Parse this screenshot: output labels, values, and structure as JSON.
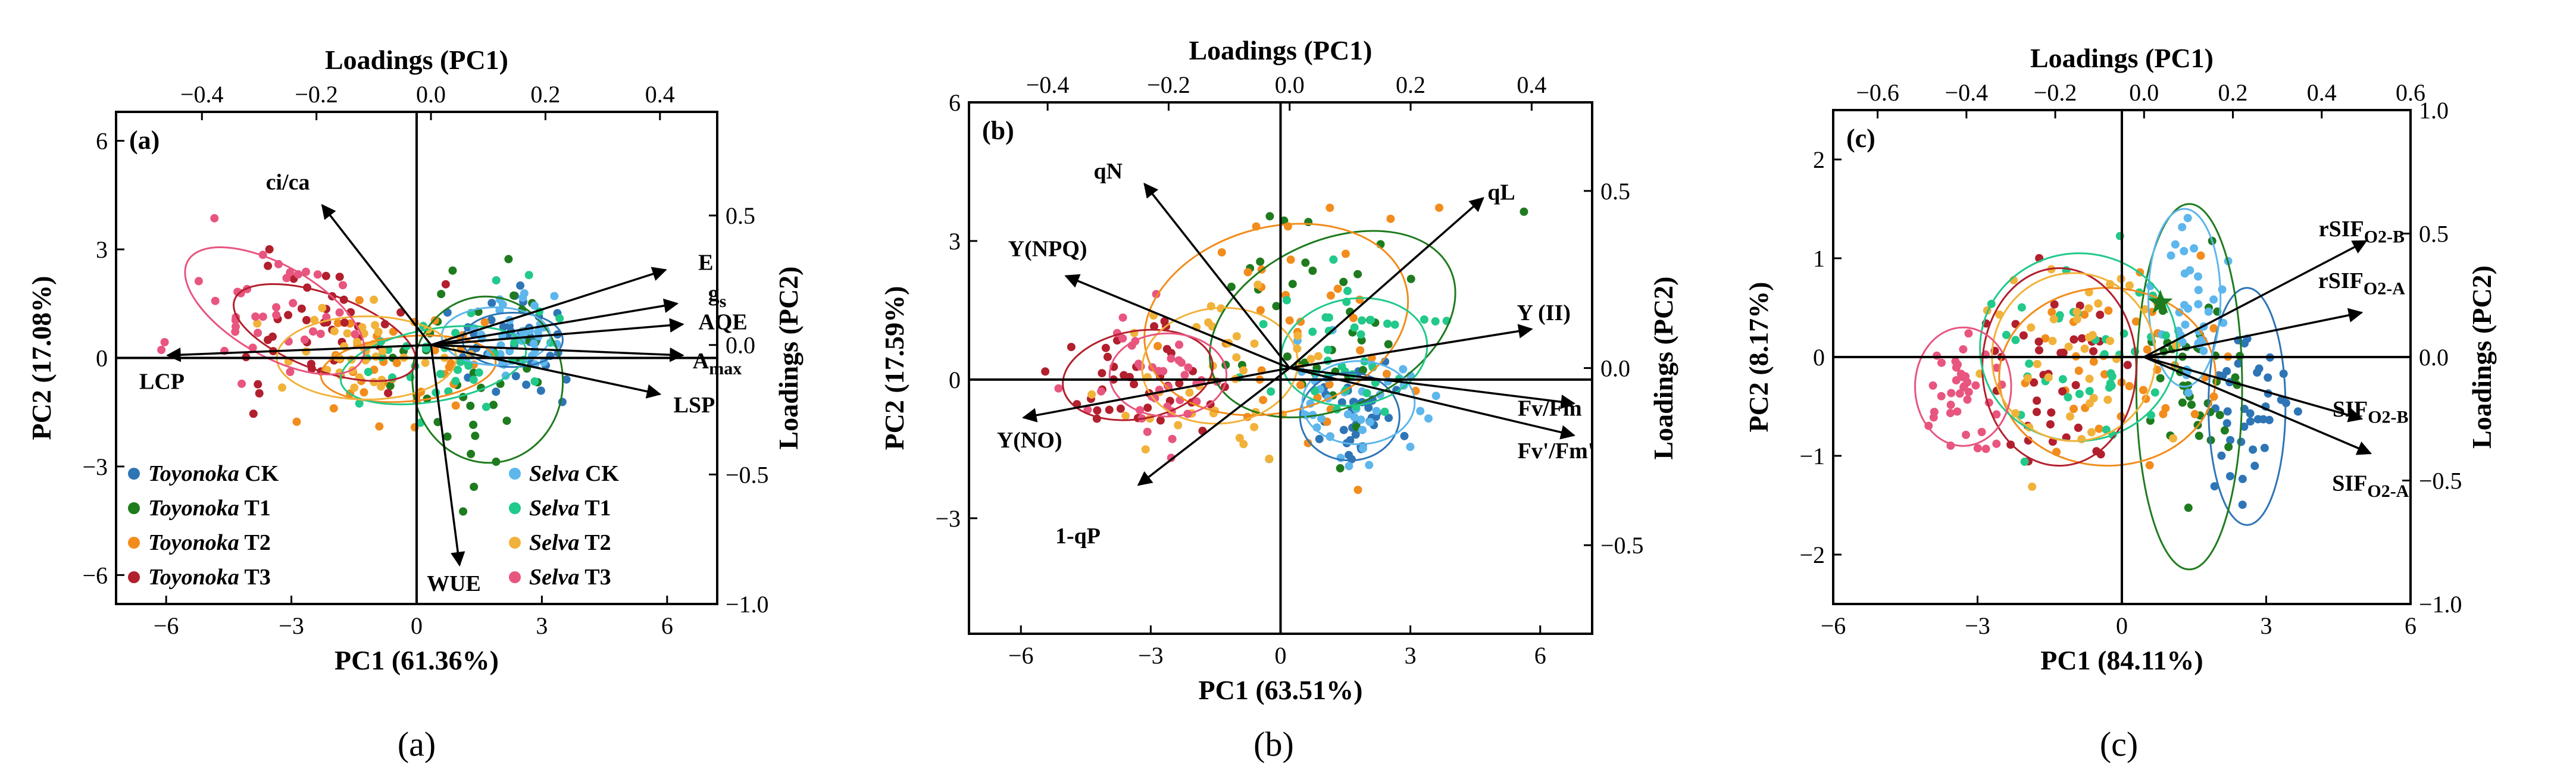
{
  "chart_data": [
    {
      "type": "scatter",
      "panel": "(a)",
      "caption": "(a)",
      "top_title": "Loadings (PC1)",
      "right_title": "Loadings (PC2)",
      "xlabel": "PC1 (61.36%)",
      "ylabel": "PC2 (17.08%)",
      "xlim": [
        -7.2,
        7.2
      ],
      "ylim": [
        -6.8,
        6.8
      ],
      "xticks": [
        -6,
        -3,
        0,
        3,
        6
      ],
      "xtick_labels": [
        "−6",
        "−3",
        "0",
        "3",
        "6"
      ],
      "yticks": [
        -6,
        -3,
        0,
        3,
        6
      ],
      "ytick_labels": [
        "−6",
        "−3",
        "0",
        "3",
        "6"
      ],
      "top_lim": [
        -0.55,
        0.5
      ],
      "top_ticks": [
        -0.4,
        -0.2,
        0.0,
        0.2,
        0.4
      ],
      "top_tick_labels": [
        "−0.4",
        "−0.2",
        "0.0",
        "0.2",
        "0.4"
      ],
      "right_lim": [
        -1.0,
        0.9
      ],
      "right_ticks": [
        0.5,
        0.0,
        -0.5,
        -1.0
      ],
      "right_tick_labels": [
        "0.5",
        "0.0",
        "−0.5",
        "−1.0"
      ],
      "legend": [
        {
          "cultivar": "Toyonoka",
          "treatment": "CK",
          "color": "#2e75b6"
        },
        {
          "cultivar": "Toyonoka",
          "treatment": "T1",
          "color": "#1e7b1e"
        },
        {
          "cultivar": "Toyonoka",
          "treatment": "T2",
          "color": "#f28c1c"
        },
        {
          "cultivar": "Toyonoka",
          "treatment": "T3",
          "color": "#b21f2d"
        },
        {
          "cultivar": "Selva",
          "treatment": "CK",
          "color": "#5db6ec"
        },
        {
          "cultivar": "Selva",
          "treatment": "T1",
          "color": "#21c98a"
        },
        {
          "cultivar": "Selva",
          "treatment": "T2",
          "color": "#f1b23a"
        },
        {
          "cultivar": "Selva",
          "treatment": "T3",
          "color": "#e8557f"
        }
      ],
      "groups": [
        {
          "center": [
            2.4,
            0.5
          ],
          "spread": [
            0.9,
            0.9
          ],
          "ellipse": [
            2.3,
            2.4,
            1.5,
            0,
            0
          ]
        },
        {
          "center": [
            1.6,
            -0.6
          ],
          "spread": [
            1.2,
            2.2
          ],
          "ellipse": [
            1.7,
            3.6,
            4.6,
            6,
            0
          ]
        },
        {
          "center": [
            -0.6,
            -0.3
          ],
          "spread": [
            1.3,
            1.0
          ],
          "ellipse": [
            -0.2,
            4.2,
            1.8,
            5,
            0
          ]
        },
        {
          "center": [
            -2.3,
            0.7
          ],
          "spread": [
            1.3,
            1.0
          ],
          "ellipse": [
            -2.2,
            4.6,
            2.1,
            -20,
            0
          ]
        },
        {
          "center": [
            2.5,
            0.6
          ],
          "spread": [
            0.7,
            0.7
          ],
          "ellipse": [
            1.9,
            2.6,
            1.6,
            0,
            0
          ]
        },
        {
          "center": [
            0.8,
            -0.2
          ],
          "spread": [
            1.5,
            1.0
          ],
          "ellipse": [
            0.4,
            4.5,
            2.0,
            10,
            0
          ]
        },
        {
          "center": [
            -1.4,
            0.0
          ],
          "spread": [
            1.5,
            1.1
          ],
          "ellipse": [
            -1.2,
            4.3,
            2.3,
            0,
            0
          ]
        },
        {
          "center": [
            -3.6,
            1.3
          ],
          "spread": [
            1.6,
            1.1
          ],
          "ellipse": [
            -3.4,
            4.8,
            2.5,
            -30,
            0
          ]
        }
      ],
      "vectors": [
        {
          "label": "ci/ca",
          "x": -0.19,
          "y": 0.54,
          "lx": -0.25,
          "ly": 0.62
        },
        {
          "label": "E",
          "x": 0.41,
          "y": 0.29,
          "lx": 0.48,
          "ly": 0.31
        },
        {
          "label": "g",
          "sub": "s",
          "x": 0.43,
          "y": 0.16,
          "lx": 0.5,
          "ly": 0.19
        },
        {
          "label": "AQE",
          "x": 0.44,
          "y": 0.08,
          "lx": 0.51,
          "ly": 0.08
        },
        {
          "label": "A",
          "sub": "max",
          "x": 0.44,
          "y": -0.04,
          "lx": 0.5,
          "ly": -0.07
        },
        {
          "label": "LSP",
          "x": 0.4,
          "y": -0.19,
          "lx": 0.46,
          "ly": -0.24
        },
        {
          "label": "LCP",
          "x": -0.46,
          "y": -0.04,
          "lx": -0.47,
          "ly": -0.15
        },
        {
          "label": "WUE",
          "x": 0.05,
          "y": -0.85,
          "lx": 0.04,
          "ly": -0.93
        }
      ]
    },
    {
      "type": "scatter",
      "panel": "(b)",
      "caption": "(b)",
      "top_title": "Loadings (PC1)",
      "right_title": "Loadings (PC2)",
      "xlabel": "PC1 (63.51%)",
      "ylabel": "PC2 (17.59%)",
      "xlim": [
        -7.2,
        7.2
      ],
      "ylim": [
        -5.5,
        6.0
      ],
      "xticks": [
        -6,
        -3,
        0,
        3,
        6
      ],
      "xtick_labels": [
        "−6",
        "−3",
        "0",
        "3",
        "6"
      ],
      "yticks": [
        -3,
        0,
        3,
        6
      ],
      "ytick_labels": [
        "−3",
        "0",
        "3",
        "6"
      ],
      "top_lim": [
        -0.53,
        0.5
      ],
      "top_ticks": [
        -0.4,
        -0.2,
        0.0,
        0.2,
        0.4
      ],
      "top_tick_labels": [
        "−0.4",
        "−0.2",
        "0.0",
        "0.2",
        "0.4"
      ],
      "right_lim": [
        -0.75,
        0.75
      ],
      "right_ticks": [
        0.5,
        0.0,
        -0.5
      ],
      "right_tick_labels": [
        "0.5",
        "0.0",
        "−0.5"
      ],
      "groups": [
        {
          "center": [
            1.8,
            -0.8
          ],
          "spread": [
            0.8,
            0.7
          ],
          "ellipse": [
            1.6,
            2.3,
            1.9,
            0,
            0
          ]
        },
        {
          "center": [
            1.0,
            1.2
          ],
          "spread": [
            1.7,
            1.8
          ],
          "ellipse": [
            1.2,
            6.0,
            3.6,
            25,
            0
          ]
        },
        {
          "center": [
            0.4,
            1.3
          ],
          "spread": [
            1.8,
            1.9
          ],
          "ellipse": [
            -0.1,
            6.2,
            4.0,
            15,
            0
          ]
        },
        {
          "center": [
            -3.4,
            0.1
          ],
          "spread": [
            1.1,
            0.9
          ],
          "ellipse": [
            -3.3,
            3.5,
            1.9,
            10,
            0
          ]
        },
        {
          "center": [
            1.7,
            -0.5
          ],
          "spread": [
            0.9,
            0.7
          ],
          "ellipse": [
            1.8,
            2.6,
            1.8,
            0,
            0
          ]
        },
        {
          "center": [
            1.5,
            0.6
          ],
          "spread": [
            1.3,
            1.0
          ],
          "ellipse": [
            1.7,
            3.4,
            2.3,
            10,
            0
          ]
        },
        {
          "center": [
            -1.5,
            0.3
          ],
          "spread": [
            1.5,
            1.3
          ],
          "ellipse": [
            -1.4,
            3.6,
            2.5,
            5,
            0
          ]
        },
        {
          "center": [
            -2.8,
            0.1
          ],
          "spread": [
            1.0,
            0.9
          ],
          "ellipse": [
            -2.6,
            2.7,
            1.8,
            0,
            0
          ]
        }
      ],
      "vectors": [
        {
          "label": "qN",
          "x": -0.24,
          "y": 0.52,
          "lx": -0.3,
          "ly": 0.55
        },
        {
          "label": "qL",
          "x": 0.32,
          "y": 0.48,
          "lx": 0.35,
          "ly": 0.49
        },
        {
          "label": "Y(NPQ)",
          "x": -0.37,
          "y": 0.26,
          "lx": -0.4,
          "ly": 0.33
        },
        {
          "label": "Y (II)",
          "x": 0.4,
          "y": 0.11,
          "lx": 0.42,
          "ly": 0.15
        },
        {
          "label": "Fv/Fm",
          "x": 0.47,
          "y": -0.1,
          "lx": 0.43,
          "ly": -0.12
        },
        {
          "label": "Fv'/Fm'",
          "x": 0.47,
          "y": -0.19,
          "lx": 0.44,
          "ly": -0.24
        },
        {
          "label": "Y(NO)",
          "x": -0.44,
          "y": -0.14,
          "lx": -0.43,
          "ly": -0.21
        },
        {
          "label": "1-qP",
          "x": -0.25,
          "y": -0.33,
          "lx": -0.35,
          "ly": -0.48
        }
      ]
    },
    {
      "type": "scatter",
      "panel": "(c)",
      "caption": "(c)",
      "top_title": "Loadings (PC1)",
      "right_title": "Loadings (PC2)",
      "xlabel": "PC1 (84.11%)",
      "ylabel": "PC2 (8.17%)",
      "xlim": [
        -6,
        6
      ],
      "ylim": [
        -2.5,
        2.5
      ],
      "xticks": [
        -6,
        -3,
        0,
        3,
        6
      ],
      "xtick_labels": [
        "−6",
        "−3",
        "0",
        "3",
        "6"
      ],
      "yticks": [
        -2,
        -1,
        0,
        1,
        2
      ],
      "ytick_labels": [
        "−2",
        "−1",
        "0",
        "1",
        "2"
      ],
      "top_lim": [
        -0.7,
        0.6
      ],
      "top_ticks": [
        -0.6,
        -0.4,
        -0.2,
        0.0,
        0.2,
        0.4,
        0.6
      ],
      "top_tick_labels": [
        "−0.6",
        "−0.4",
        "−0.2",
        "0.0",
        "0.2",
        "0.4",
        "0.6"
      ],
      "right_lim": [
        -1.0,
        1.0
      ],
      "right_ticks": [
        1.0,
        0.5,
        0.0,
        -0.5,
        -1.0
      ],
      "right_tick_labels": [
        "1.0",
        "0.5",
        "0.0",
        "−0.5",
        "−1.0"
      ],
      "groups": [
        {
          "center": [
            2.6,
            -0.5
          ],
          "spread": [
            0.5,
            0.5
          ],
          "ellipse": [
            2.6,
            1.6,
            2.4,
            0,
            0
          ]
        },
        {
          "center": [
            1.5,
            -0.3
          ],
          "spread": [
            0.7,
            0.7
          ],
          "ellipse": [
            1.4,
            2.2,
            3.7,
            0,
            0
          ]
        },
        {
          "center": [
            0.2,
            -0.2
          ],
          "spread": [
            1.3,
            0.5
          ],
          "ellipse": [
            -0.3,
            4.5,
            1.8,
            0,
            0
          ]
        },
        {
          "center": [
            -1.3,
            -0.1
          ],
          "spread": [
            1.0,
            0.6
          ],
          "ellipse": [
            -1.3,
            3.2,
            2.0,
            0,
            0
          ]
        },
        {
          "center": [
            1.4,
            0.6
          ],
          "spread": [
            0.5,
            0.5
          ],
          "ellipse": [
            1.3,
            1.5,
            1.8,
            0,
            0
          ]
        },
        {
          "center": [
            -0.7,
            0.1
          ],
          "spread": [
            1.2,
            0.6
          ],
          "ellipse": [
            -0.9,
            4.1,
            1.9,
            5,
            0
          ]
        },
        {
          "center": [
            -1.0,
            0.0
          ],
          "spread": [
            1.0,
            0.6
          ],
          "ellipse": [
            -1.0,
            3.4,
            1.7,
            0,
            0
          ]
        },
        {
          "center": [
            -3.3,
            -0.3
          ],
          "spread": [
            0.5,
            0.4
          ],
          "ellipse": [
            -3.3,
            2.0,
            1.2,
            0,
            0
          ]
        }
      ],
      "vectors": [
        {
          "label": "rSIF",
          "sub": "O2-B",
          "x": 0.5,
          "y": 0.47,
          "lx": 0.49,
          "ly": 0.51
        },
        {
          "label": "rSIF",
          "sub": "O2-A",
          "x": 0.49,
          "y": 0.18,
          "lx": 0.49,
          "ly": 0.3
        },
        {
          "label": "SIF",
          "sub": "O2-B",
          "x": 0.49,
          "y": -0.25,
          "lx": 0.51,
          "ly": -0.22
        },
        {
          "label": "SIF",
          "sub": "O2-A",
          "x": 0.51,
          "y": -0.39,
          "lx": 0.51,
          "ly": -0.52
        }
      ]
    }
  ]
}
